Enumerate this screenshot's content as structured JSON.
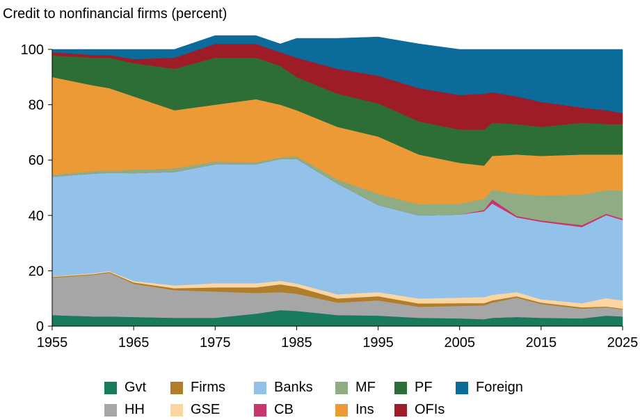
{
  "chart_data": {
    "type": "area",
    "stacked": true,
    "title": "Credit to nonfinancial firms (percent)",
    "xlabel": "",
    "ylabel": "",
    "xlim": [
      1955,
      2025
    ],
    "ylim": [
      0,
      100
    ],
    "x_ticks": [
      "1955",
      "1965",
      "1975",
      "1985",
      "1995",
      "2005",
      "2015",
      "2025"
    ],
    "y_ticks": [
      "0",
      "20",
      "40",
      "60",
      "80",
      "100"
    ],
    "grid": false,
    "legend_position": "bottom",
    "x": [
      1955,
      1960,
      1962,
      1965,
      1970,
      1975,
      1980,
      1983,
      1985,
      1990,
      1995,
      2000,
      2005,
      2008,
      2009,
      2012,
      2015,
      2020,
      2023,
      2025
    ],
    "series": [
      {
        "name": "Gvt",
        "color": "#1a7a5e",
        "values": [
          4,
          3.5,
          3.5,
          3.3,
          3.0,
          3.0,
          4.5,
          5.8,
          5.5,
          4.0,
          3.8,
          3.0,
          2.8,
          2.5,
          3.0,
          3.3,
          3.0,
          2.8,
          3.8,
          3.5
        ]
      },
      {
        "name": "HH",
        "color": "#a6a6a6",
        "values": [
          13.5,
          15.0,
          15.8,
          12.0,
          10.0,
          9.5,
          7.5,
          6.5,
          6.2,
          4.5,
          5.5,
          4.0,
          4.5,
          5.0,
          5.5,
          7.0,
          5.0,
          3.5,
          3.0,
          2.5
        ]
      },
      {
        "name": "Firms",
        "color": "#b07d2b",
        "values": [
          0.3,
          0.3,
          0.3,
          0.5,
          0.7,
          1.5,
          2.0,
          2.8,
          2.5,
          1.5,
          1.5,
          1.2,
          1.0,
          0.8,
          0.8,
          0.5,
          0.5,
          0.5,
          0.3,
          0.3
        ]
      },
      {
        "name": "GSE",
        "color": "#fcd5a0",
        "values": [
          0.2,
          0.3,
          0.3,
          0.5,
          1.0,
          1.5,
          1.5,
          1.3,
          1.2,
          1.5,
          1.5,
          1.8,
          2.0,
          2.2,
          2.0,
          1.5,
          1.2,
          1.5,
          3.0,
          3.0
        ]
      },
      {
        "name": "Banks",
        "color": "#92c1e9",
        "values": [
          36,
          36,
          35.5,
          39,
          41,
          43,
          43,
          44,
          45,
          40,
          31.5,
          30,
          30,
          31,
          33,
          27,
          28,
          27.5,
          30,
          29
        ]
      },
      {
        "name": "CB",
        "color": "#c8366b",
        "values": [
          0,
          0,
          0,
          0,
          0,
          0,
          0,
          0,
          0,
          0,
          0,
          0,
          0,
          0.5,
          1.5,
          0.5,
          0.5,
          0.7,
          0.5,
          0.5
        ]
      },
      {
        "name": "MF",
        "color": "#8fac84",
        "values": [
          0.7,
          0.9,
          0.9,
          1.2,
          1.3,
          1.0,
          0.7,
          0.6,
          1.0,
          1.5,
          4.0,
          4.0,
          4.0,
          4.0,
          3.5,
          8.0,
          9.0,
          11.0,
          8.5,
          10.2
        ]
      },
      {
        "name": "Ins",
        "color": "#ec9a35",
        "values": [
          35.3,
          31.0,
          29.7,
          26.5,
          21.0,
          20.5,
          22.8,
          19.0,
          16.6,
          19.0,
          20.7,
          18.0,
          14.7,
          12.0,
          12.2,
          14.2,
          14.3,
          14.5,
          12.9,
          13.0
        ]
      },
      {
        "name": "PF",
        "color": "#2d6e37",
        "values": [
          7.8,
          10.0,
          11.0,
          12.0,
          15.0,
          17.0,
          15.0,
          14.0,
          12.0,
          12.0,
          12.0,
          12.0,
          12.0,
          13.0,
          12.0,
          11.0,
          10.5,
          11.5,
          11.0,
          11.0
        ]
      },
      {
        "name": "OFIs",
        "color": "#9e1c28",
        "values": [
          1.2,
          1.0,
          1.0,
          1.5,
          4.0,
          5.0,
          5.0,
          5.0,
          7.0,
          9.0,
          10.0,
          12.0,
          12.5,
          13.0,
          11.0,
          10.0,
          9.0,
          5.5,
          5.0,
          4.0
        ]
      },
      {
        "name": "Foreign",
        "color": "#0b6b9a",
        "values": [
          1.0,
          2.0,
          2.0,
          3.5,
          3.0,
          3.0,
          3.0,
          3.0,
          7.0,
          11.0,
          14.0,
          16.0,
          16.5,
          16.0,
          15.5,
          17.0,
          19.0,
          21.0,
          22.0,
          23.0
        ]
      }
    ]
  }
}
